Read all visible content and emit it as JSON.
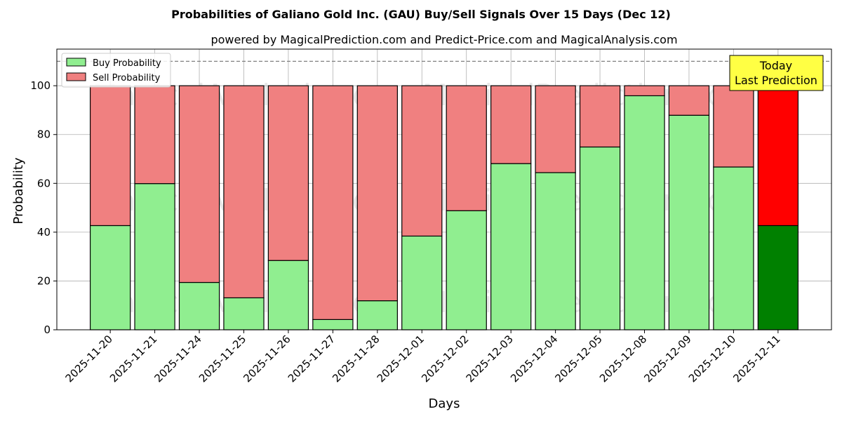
{
  "chart_data": {
    "type": "bar",
    "title": "Probabilities of Galiano Gold Inc. (GAU) Buy/Sell Signals Over 15 Days (Dec 12)",
    "subtitle": "powered by MagicalPrediction.com and Predict-Price.com and MagicalAnalysis.com",
    "xlabel": "Days",
    "ylabel": "Probability",
    "ylim": [
      0,
      115
    ],
    "yticks": [
      0,
      20,
      40,
      60,
      80,
      100
    ],
    "categories": [
      "2025-11-20",
      "2025-11-21",
      "2025-11-24",
      "2025-11-25",
      "2025-11-26",
      "2025-11-27",
      "2025-11-28",
      "2025-12-01",
      "2025-12-02",
      "2025-12-03",
      "2025-12-04",
      "2025-12-05",
      "2025-12-08",
      "2025-12-09",
      "2025-12-10",
      "2025-12-11"
    ],
    "series": [
      {
        "name": "Buy Probability",
        "color": "#90ee90",
        "values": [
          42.7,
          59.9,
          19.4,
          13.1,
          28.4,
          4.2,
          11.9,
          38.4,
          48.8,
          68.1,
          64.4,
          74.9,
          95.9,
          87.9,
          66.7,
          42.7
        ]
      },
      {
        "name": "Sell Probability",
        "color": "#f08080",
        "values": [
          57.3,
          40.1,
          80.6,
          86.9,
          71.6,
          95.8,
          88.1,
          61.6,
          51.2,
          31.9,
          35.6,
          25.1,
          4.1,
          12.1,
          33.3,
          57.3
        ]
      }
    ],
    "highlight": {
      "index": 15,
      "buy_color": "#008000",
      "sell_color": "#ff0000"
    },
    "reference_line": {
      "y": 110,
      "style": "dashed",
      "color": "#808080"
    },
    "annotation": {
      "lines": [
        "Today",
        "Last Prediction"
      ],
      "background": "#ffff44"
    },
    "legend": {
      "placement": "top-left"
    },
    "grid": true,
    "watermark": [
      "MagicalAnalysis.com",
      "MagicalPrediction.com"
    ]
  }
}
